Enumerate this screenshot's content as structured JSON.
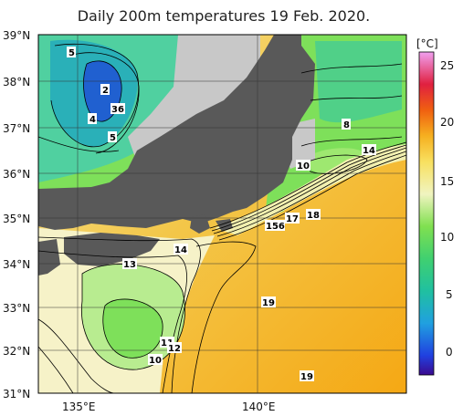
{
  "title": "Daily 200m temperatures 19 Feb. 2020.",
  "axes": {
    "lat_labels": [
      "39°N",
      "38°N",
      "37°N",
      "36°N",
      "35°N",
      "34°N",
      "33°N",
      "32°N",
      "31°N"
    ],
    "lon_labels": [
      "135°E",
      "140°E"
    ]
  },
  "colorbar": {
    "unit": "[°C]",
    "ticks": [
      "25",
      "20",
      "15",
      "10",
      "5",
      "0"
    ]
  },
  "contour_labels": [
    "5",
    "2",
    "36",
    "4",
    "5",
    "8",
    "14",
    "10",
    "18",
    "17",
    "156",
    "13",
    "14",
    "19",
    "11",
    "12",
    "10",
    "19"
  ],
  "colors": {
    "land": "#595959",
    "no_data": "#c8c8c8",
    "warm": "#f5b01a",
    "mid": "#f2e48c",
    "cool_green": "#7ee05a",
    "teal": "#2ab89a"
  }
}
